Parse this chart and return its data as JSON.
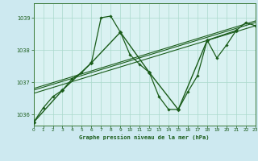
{
  "title": "Graphe pression niveau de la mer (hPa)",
  "background_color": "#cde9f0",
  "plot_bg_color": "#daf2f2",
  "line_color": "#1a5c1a",
  "grid_color": "#aad9cc",
  "xlim": [
    0,
    23
  ],
  "ylim": [
    1035.65,
    1039.45
  ],
  "yticks": [
    1036,
    1037,
    1038,
    1039
  ],
  "xticks": [
    0,
    1,
    2,
    3,
    4,
    5,
    6,
    7,
    8,
    9,
    10,
    11,
    12,
    13,
    14,
    15,
    16,
    17,
    18,
    19,
    20,
    21,
    22,
    23
  ],
  "series_hourly": {
    "x": [
      0,
      1,
      2,
      3,
      4,
      5,
      6,
      7,
      8,
      9,
      10,
      11,
      12,
      13,
      14,
      15,
      16,
      17,
      18,
      19,
      20,
      21,
      22,
      23
    ],
    "y": [
      1035.75,
      1036.2,
      1036.55,
      1036.75,
      1037.1,
      1037.3,
      1037.6,
      1039.0,
      1039.05,
      1038.55,
      1037.85,
      1037.55,
      1037.3,
      1036.55,
      1036.15,
      1036.15,
      1036.7,
      1037.2,
      1038.3,
      1037.75,
      1038.15,
      1038.6,
      1038.85,
      1038.75
    ]
  },
  "series_3h": {
    "x": [
      0,
      3,
      6,
      9,
      12,
      15,
      18,
      21
    ],
    "y": [
      1035.75,
      1036.75,
      1037.6,
      1038.55,
      1037.3,
      1036.15,
      1038.3,
      1038.6
    ]
  },
  "series_linear1": {
    "x": [
      0,
      23
    ],
    "y": [
      1036.65,
      1038.75
    ]
  },
  "series_linear2": {
    "x": [
      0,
      23
    ],
    "y": [
      1036.75,
      1038.85
    ]
  },
  "series_linear3": {
    "x": [
      0,
      23
    ],
    "y": [
      1036.8,
      1038.9
    ]
  }
}
